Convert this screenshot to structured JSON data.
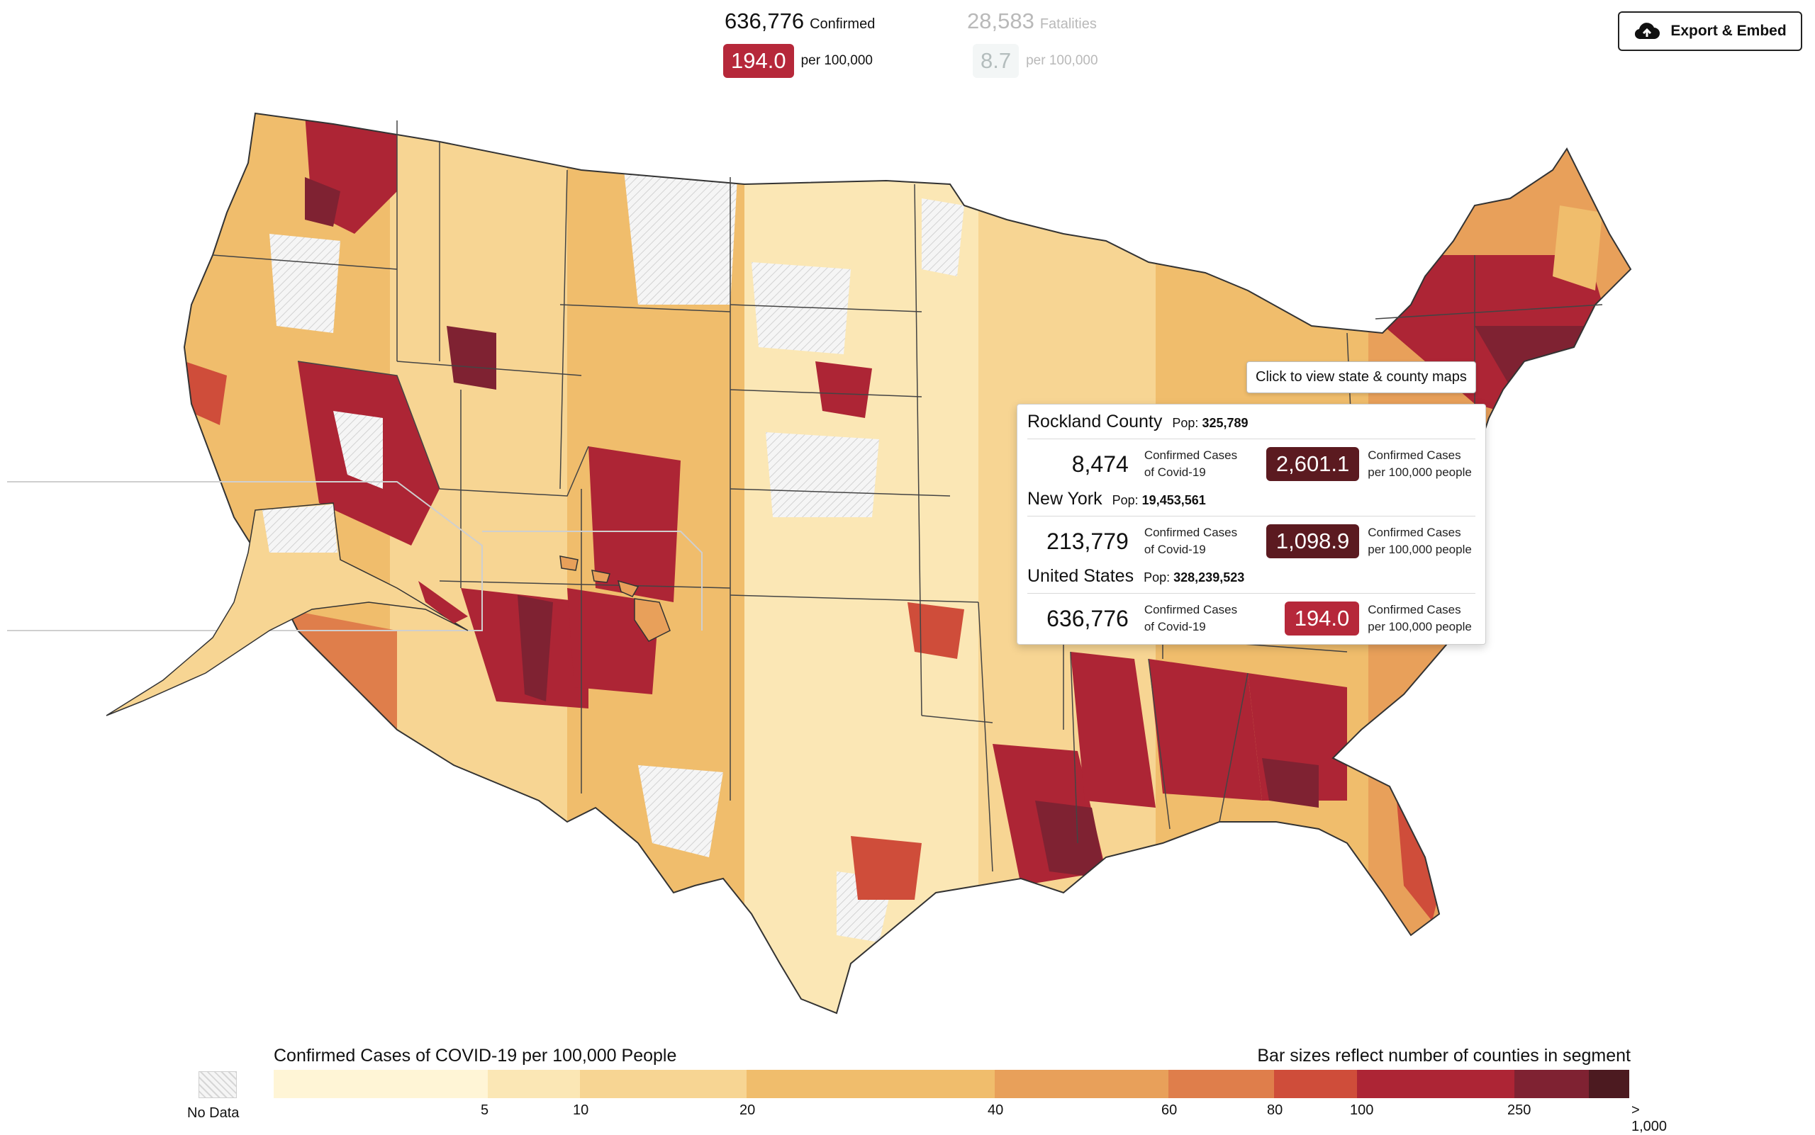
{
  "header": {
    "confirmed_value": "636,776",
    "confirmed_label": "Confirmed",
    "fatalities_value": "28,583",
    "fatalities_label": "Fatalities",
    "confirmed_rate": "194.0",
    "fatalities_rate": "8.7",
    "per_label": "per 100,000"
  },
  "export_button": {
    "label": "Export & Embed",
    "icon": "cloud-upload-icon"
  },
  "hint": {
    "text": "Click to view state & county maps"
  },
  "panel": {
    "pop_label": "Pop:",
    "cases_label_1": "Confirmed Cases",
    "cases_label_2": "of Covid-19",
    "rate_label_1": "Confirmed Cases",
    "rate_label_2": "per 100,000 people",
    "rows": [
      {
        "name": "Rockland County",
        "pop": "325,789",
        "cases": "8,474",
        "rate": "2,601.1",
        "color": "#5b1a20"
      },
      {
        "name": "New York",
        "pop": "19,453,561",
        "cases": "213,779",
        "rate": "1,098.9",
        "color": "#5b1a20"
      },
      {
        "name": "United States",
        "pop": "328,239,523",
        "cases": "636,776",
        "rate": "194.0",
        "color": "#b6283a"
      }
    ]
  },
  "legend": {
    "title": "Confirmed Cases of COVID-19 per 100,000 People",
    "note": "Bar sizes reflect number of counties in segment",
    "no_data_label": "No Data",
    "ticks": [
      "5",
      "10",
      "20",
      "40",
      "60",
      "80",
      "100",
      "250",
      "> 1,000"
    ],
    "segments": [
      {
        "color": "#fff5d6",
        "share": 0.158
      },
      {
        "color": "#fbe7b5",
        "share": 0.068
      },
      {
        "color": "#f7d593",
        "share": 0.123
      },
      {
        "color": "#f0bd6c",
        "share": 0.183
      },
      {
        "color": "#e8a05a",
        "share": 0.128
      },
      {
        "color": "#df7e4b",
        "share": 0.078
      },
      {
        "color": "#cf4d3a",
        "share": 0.061
      },
      {
        "color": "#ad2535",
        "share": 0.116
      },
      {
        "color": "#7f2232",
        "share": 0.055
      },
      {
        "color": "#4c1a20",
        "share": 0.03
      }
    ]
  }
}
